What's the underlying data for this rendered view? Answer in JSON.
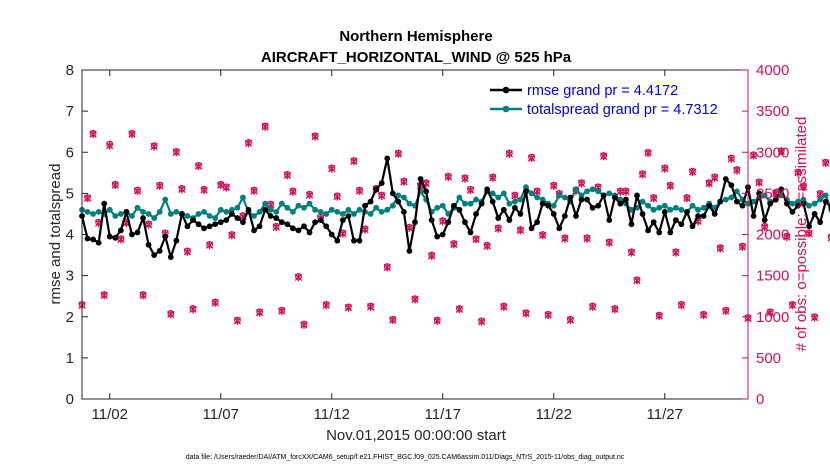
{
  "chart_data": {
    "type": "line",
    "title": "Northern Hemisphere",
    "subtitle": "AIRCRAFT_HORIZONTAL_WIND @ 525 hPa",
    "xlabel": "Nov.01,2015 00:00:00 start",
    "ylabel": "rmse and totalspread",
    "y2label": "# of obs: o=possible; ×=assimilated",
    "footnote": "data file: /Users/raeder/DAI/ATM_forcXX/CAM6_setup/f.e21.FHIST_BGC.f09_025.CAM6assim.011/Diags_NTrS_2015-11/obs_diag_output.nc",
    "xlim": [
      0.75,
      30.75
    ],
    "ylim": [
      0,
      8
    ],
    "y2lim": [
      0,
      4000
    ],
    "x_ticks": [
      2,
      7,
      12,
      17,
      22,
      27
    ],
    "x_tick_labels": [
      "11/02",
      "11/07",
      "11/12",
      "11/17",
      "11/22",
      "11/27"
    ],
    "y_ticks": [
      "0",
      "1",
      "2",
      "3",
      "4",
      "5",
      "6",
      "7",
      "8"
    ],
    "y2_ticks": [
      "0",
      "500",
      "1000",
      "1500",
      "2000",
      "2500",
      "3000",
      "3500",
      "4000"
    ],
    "grid": false,
    "legend_location": "top-right",
    "series": [
      {
        "name": "rmse grand pr = 4.4172",
        "color": "#000000",
        "marker": "circle",
        "x0": 0.75,
        "dx": 0.25,
        "values": [
          4.45,
          3.9,
          3.88,
          3.8,
          4.75,
          3.95,
          3.92,
          4.1,
          4.55,
          4.0,
          4.05,
          4.4,
          3.75,
          3.5,
          3.6,
          3.95,
          3.45,
          3.85,
          4.5,
          4.2,
          4.35,
          4.25,
          4.15,
          4.2,
          4.25,
          4.3,
          4.35,
          4.5,
          4.4,
          4.3,
          4.6,
          4.1,
          4.2,
          4.6,
          4.45,
          4.4,
          4.3,
          4.25,
          4.15,
          4.1,
          4.2,
          4.05,
          4.3,
          4.35,
          4.2,
          4.0,
          3.85,
          4.35,
          4.45,
          3.85,
          3.85,
          4.7,
          4.8,
          5.1,
          5.25,
          5.85,
          5.0,
          4.8,
          4.55,
          3.6,
          4.3,
          5.35,
          5.05,
          4.35,
          3.95,
          4.0,
          4.3,
          4.7,
          4.6,
          4.3,
          4.05,
          4.5,
          4.75,
          5.1,
          4.8,
          4.4,
          4.6,
          4.35,
          4.65,
          4.5,
          5.05,
          4.15,
          4.3,
          4.75,
          4.7,
          4.5,
          4.15,
          4.45,
          4.9,
          4.45,
          4.85,
          4.85,
          4.65,
          4.7,
          4.95,
          4.35,
          4.9,
          4.75,
          4.85,
          4.25,
          4.95,
          4.5,
          4.1,
          4.3,
          4.05,
          4.55,
          4.05,
          4.35,
          4.25,
          4.55,
          4.2,
          4.45,
          4.45,
          4.7,
          4.5,
          4.8,
          5.35,
          5.2,
          4.8,
          4.7,
          5.15,
          4.45,
          5.0,
          4.35,
          4.75,
          4.85,
          5.1,
          4.75,
          4.55,
          4.7,
          4.75,
          4.2,
          4.5,
          4.3,
          4.8,
          4.65,
          4.9,
          4.25,
          4.2,
          4.5,
          5.2,
          4.5,
          4.15,
          4.3,
          4.2
        ]
      },
      {
        "name": "totalspread grand pr = 4.7312",
        "color": "#007f7f",
        "marker": "circle",
        "x0": 0.75,
        "dx": 0.25,
        "values": [
          4.6,
          4.55,
          4.5,
          4.55,
          4.5,
          4.6,
          4.45,
          4.5,
          4.55,
          4.45,
          4.65,
          4.55,
          4.5,
          4.4,
          4.55,
          4.85,
          4.5,
          4.55,
          4.5,
          4.45,
          4.4,
          4.5,
          4.55,
          4.45,
          4.4,
          4.6,
          4.55,
          4.6,
          4.65,
          4.9,
          4.55,
          4.45,
          4.55,
          4.75,
          4.6,
          4.55,
          4.75,
          4.65,
          4.55,
          4.7,
          4.65,
          4.75,
          4.6,
          4.55,
          4.5,
          4.6,
          4.55,
          4.5,
          4.6,
          4.5,
          4.6,
          4.55,
          4.5,
          4.65,
          4.55,
          4.6,
          4.7,
          4.95,
          4.9,
          4.75,
          4.7,
          5.05,
          4.85,
          4.55,
          4.65,
          4.7,
          4.5,
          4.65,
          4.9,
          4.75,
          4.75,
          4.85,
          4.8,
          5.05,
          5.0,
          4.9,
          5.0,
          4.75,
          4.8,
          4.85,
          5.15,
          5.0,
          4.9,
          4.85,
          4.75,
          4.7,
          4.95,
          4.9,
          4.8,
          5.1,
          4.95,
          5.05,
          5.1,
          5.05,
          4.95,
          5.0,
          4.95,
          4.85,
          4.75,
          4.6,
          4.65,
          4.8,
          4.7,
          4.6,
          4.65,
          4.7,
          4.6,
          4.65,
          4.6,
          4.55,
          4.7,
          4.6,
          4.65,
          4.75,
          4.65,
          4.8,
          4.85,
          4.9,
          5.05,
          4.85,
          4.75,
          4.8,
          4.9,
          4.95,
          4.8,
          4.85,
          4.95,
          4.85,
          4.75,
          4.8,
          4.85,
          4.7,
          4.75,
          4.85,
          4.95,
          4.6,
          4.75,
          4.8,
          4.9,
          4.75,
          4.85,
          4.95,
          4.8
        ]
      },
      {
        "name": "obs possible",
        "color": "#d0105a",
        "marker": "o",
        "axis": "right",
        "x0": 0.75,
        "dx": 0.25,
        "values": [
          1150,
          2450,
          3230,
          2150,
          1270,
          3100,
          2610,
          1950,
          2150,
          3230,
          2540,
          1270,
          2130,
          3080,
          2600,
          2020,
          1040,
          3010,
          2560,
          1800,
          1100,
          2840,
          2550,
          1880,
          1180,
          2610,
          2580,
          2000,
          960,
          2230,
          3120,
          2540,
          1060,
          3320,
          2370,
          2100,
          1080,
          2730,
          2530,
          1490,
          910,
          2490,
          3200,
          2210,
          1150,
          2810,
          2470,
          2020,
          1120,
          2900,
          2540,
          2070,
          1130,
          2560,
          2480,
          1610,
          970,
          2990,
          2650,
          2090,
          1220,
          2600,
          2630,
          1750,
          960,
          2170,
          2710,
          1890,
          1100,
          2690,
          2550,
          1950,
          950,
          1870,
          2700,
          2080,
          1130,
          2990,
          2480,
          2060,
          1050,
          2940,
          2530,
          2000,
          1030,
          2600,
          2500,
          1960,
          970,
          2540,
          2630,
          1960,
          1130,
          2580,
          2960,
          1910,
          1100,
          2530,
          2530,
          1790,
          1450,
          2740,
          3000,
          2450,
          1020,
          2810,
          2600,
          1790,
          1150,
          2450,
          2770,
          2170,
          1030,
          2630,
          2700,
          1840,
          1080,
          2930,
          2790,
          1860,
          990,
          2970,
          2640,
          2100,
          1060,
          2510,
          3020,
          1980,
          1150,
          2760,
          2590,
          2020,
          1000,
          2500,
          2880,
          1970,
          1060,
          2570,
          3120,
          1740,
          870,
          2620,
          2920,
          2100,
          1120,
          2750,
          2970,
          1760
        ]
      },
      {
        "name": "obs assimilated",
        "color": "#d0105a",
        "marker": "x",
        "axis": "right",
        "x0": 0.75,
        "dx": 0.25,
        "values": [
          1140,
          2440,
          3220,
          2140,
          1260,
          3080,
          2600,
          1940,
          2140,
          3220,
          2530,
          1260,
          2120,
          3070,
          2590,
          2010,
          1030,
          3000,
          2550,
          1790,
          1090,
          2830,
          2540,
          1870,
          1170,
          2600,
          2570,
          1990,
          950,
          2220,
          3110,
          2530,
          1050,
          3310,
          2360,
          2090,
          1070,
          2720,
          2520,
          1480,
          900,
          2480,
          3190,
          2200,
          1140,
          2800,
          2460,
          2010,
          1110,
          2890,
          2530,
          2060,
          1120,
          2550,
          2470,
          1600,
          960,
          2980,
          2640,
          2080,
          1210,
          2590,
          2620,
          1740,
          950,
          2160,
          2700,
          1880,
          1090,
          2680,
          2540,
          1940,
          940,
          1860,
          2690,
          2070,
          1120,
          2980,
          2470,
          2050,
          1040,
          2930,
          2520,
          1990,
          1020,
          2590,
          2490,
          1950,
          960,
          2530,
          2620,
          1950,
          1120,
          2570,
          2950,
          1900,
          1090,
          2520,
          2520,
          1780,
          1440,
          2730,
          2990,
          2440,
          1010,
          2800,
          2590,
          1780,
          1140,
          2440,
          2760,
          2160,
          1020,
          2620,
          2690,
          1830,
          1070,
          2920,
          2780,
          1850,
          980,
          2960,
          2630,
          2090,
          1050,
          2500,
          3010,
          1970,
          1140,
          2750,
          2580,
          2010,
          990,
          2490,
          2870,
          1960,
          1050,
          2560,
          3110,
          1730,
          860,
          2610,
          2910,
          2090,
          1110,
          2740,
          2960,
          1750
        ]
      }
    ],
    "legend_entries": [
      "rmse grand pr = 4.4172",
      "totalspread grand pr = 4.7312"
    ]
  }
}
